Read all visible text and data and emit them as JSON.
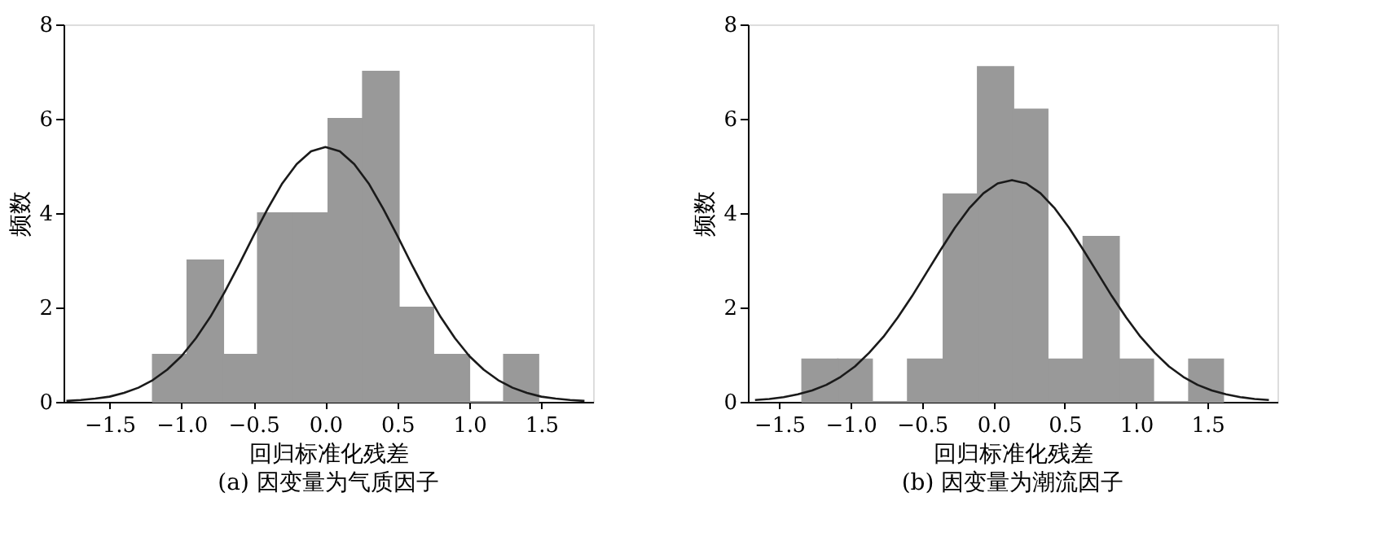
{
  "chart_data": [
    {
      "type": "histogram",
      "xlabel": "回归标准化残差",
      "ylabel": "频数",
      "annotations": [
        "(a) 因变量为气质因子"
      ],
      "bins": [
        -1.2,
        -0.96,
        -0.71,
        -0.47,
        -0.22,
        0.02,
        0.26,
        0.51,
        0.75,
        1.0,
        1.24,
        1.48
      ],
      "values": [
        1,
        3,
        1,
        4,
        4,
        6,
        7,
        2,
        1,
        0,
        1
      ],
      "color": "#999999",
      "series": [
        {
          "type": "line",
          "color": "#1a1a1a",
          "x": [
            -1.8,
            -1.7,
            -1.6,
            -1.5,
            -1.4,
            -1.3,
            -1.2,
            -1.1,
            -1.0,
            -0.9,
            -0.8,
            -0.7,
            -0.6,
            -0.5,
            -0.4,
            -0.3,
            -0.2,
            -0.1,
            0.0,
            0.1,
            0.2,
            0.3,
            0.4,
            0.5,
            0.6,
            0.7,
            0.8,
            0.9,
            1.0,
            1.1,
            1.2,
            1.3,
            1.4,
            1.5,
            1.6,
            1.7,
            1.8
          ],
          "values": [
            0.02,
            0.04,
            0.07,
            0.11,
            0.19,
            0.3,
            0.46,
            0.68,
            0.97,
            1.35,
            1.8,
            2.33,
            2.91,
            3.52,
            4.1,
            4.63,
            5.04,
            5.31,
            5.4,
            5.31,
            5.04,
            4.63,
            4.1,
            3.52,
            2.91,
            2.33,
            1.8,
            1.35,
            0.97,
            0.68,
            0.46,
            0.3,
            0.19,
            0.11,
            0.07,
            0.04,
            0.02
          ]
        }
      ],
      "xlim": [
        -1.82,
        1.86
      ],
      "ylim": [
        0,
        8
      ],
      "xticks": [
        {
          "value": -1.5,
          "label": "−1.5"
        },
        {
          "value": -1,
          "label": "−1.0"
        },
        {
          "value": -0.5,
          "label": "−0.5"
        },
        {
          "value": 0,
          "label": "0.0"
        },
        {
          "value": 0.5,
          "label": "0.5"
        },
        {
          "value": 1,
          "label": "1.0"
        },
        {
          "value": 1.5,
          "label": "1.5"
        }
      ],
      "yticks": [
        0,
        2,
        4,
        6,
        8
      ],
      "grid": false
    },
    {
      "type": "histogram",
      "xlabel": "回归标准化残差",
      "ylabel": "频数",
      "annotations": [
        "(b) 因变量为潮流因子"
      ],
      "bins": [
        -1.34,
        -1.09,
        -0.85,
        -0.6,
        -0.35,
        -0.11,
        0.14,
        0.38,
        0.63,
        0.88,
        1.12,
        1.37,
        1.61
      ],
      "values": [
        0.9,
        0.9,
        0,
        0.9,
        4.4,
        7.1,
        6.2,
        0.9,
        3.5,
        0.9,
        0,
        0.9
      ],
      "color": "#999999",
      "series": [
        {
          "type": "line",
          "color": "#1a1a1a",
          "x": [
            -1.67,
            -1.57,
            -1.47,
            -1.37,
            -1.27,
            -1.17,
            -1.07,
            -0.97,
            -0.87,
            -0.77,
            -0.67,
            -0.57,
            -0.47,
            -0.37,
            -0.27,
            -0.17,
            -0.07,
            0.03,
            0.13,
            0.23,
            0.33,
            0.43,
            0.53,
            0.63,
            0.73,
            0.83,
            0.93,
            1.03,
            1.13,
            1.23,
            1.33,
            1.43,
            1.53,
            1.63,
            1.73,
            1.83,
            1.93
          ],
          "values": [
            0.04,
            0.06,
            0.1,
            0.16,
            0.24,
            0.36,
            0.53,
            0.75,
            1.04,
            1.38,
            1.79,
            2.24,
            2.73,
            3.22,
            3.69,
            4.1,
            4.42,
            4.63,
            4.7,
            4.63,
            4.42,
            4.1,
            3.69,
            3.22,
            2.73,
            2.24,
            1.79,
            1.38,
            1.04,
            0.75,
            0.53,
            0.36,
            0.24,
            0.16,
            0.1,
            0.06,
            0.04
          ]
        }
      ],
      "xlim": [
        -1.72,
        1.99
      ],
      "ylim": [
        0,
        8
      ],
      "xticks": [
        {
          "value": -1.5,
          "label": "−1.5"
        },
        {
          "value": -1,
          "label": "−1.0"
        },
        {
          "value": -0.5,
          "label": "−0.5"
        },
        {
          "value": 0,
          "label": "0.0"
        },
        {
          "value": 0.5,
          "label": "0.5"
        },
        {
          "value": 1,
          "label": "1.0"
        },
        {
          "value": 1.5,
          "label": "1.5"
        }
      ],
      "yticks": [
        0,
        2,
        4,
        6,
        8
      ],
      "grid": false
    }
  ]
}
